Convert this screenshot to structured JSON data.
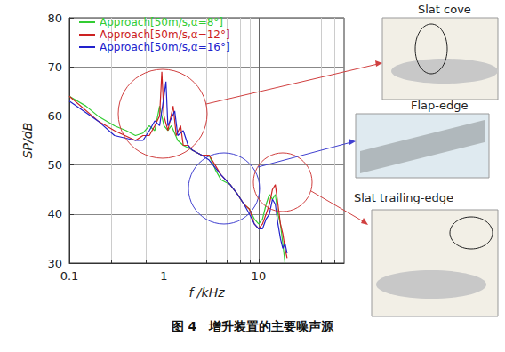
{
  "chart_data": {
    "type": "line",
    "title": "图 4　增升装置的主要噪声源",
    "x_label": "f /kHz",
    "y_label": "SP/dB",
    "log": "x",
    "grid": true,
    "legend": "top-left",
    "xlim": [
      0.1,
      80
    ],
    "xticks": [
      0.1,
      1,
      10
    ],
    "ylim": [
      30,
      80
    ],
    "yticks": [
      30,
      40,
      50,
      60,
      70,
      80
    ],
    "annotations": [
      "Slat cove",
      "Flap-edge",
      "Slat trailing-edge"
    ],
    "series": [
      {
        "name": "Approach[50m/s,α=8°]",
        "color": "#33cc33",
        "x": [
          0.1,
          0.15,
          0.2,
          0.3,
          0.4,
          0.5,
          0.6,
          0.7,
          0.8,
          0.9,
          1.0,
          1.1,
          1.2,
          1.4,
          1.6,
          1.8,
          2,
          2.5,
          3,
          3.5,
          4,
          5,
          6,
          7,
          8,
          9,
          10,
          11,
          12,
          13,
          14,
          15,
          16,
          17,
          18,
          19
        ],
        "values": [
          64,
          62,
          60,
          58,
          57,
          56,
          56.5,
          58,
          57,
          62,
          58,
          57,
          58,
          55,
          54,
          53.5,
          53,
          52,
          52,
          49,
          47,
          46,
          44,
          42,
          41,
          39,
          38,
          39,
          42,
          44,
          43,
          44,
          40,
          38,
          34,
          30
        ]
      },
      {
        "name": "Approach[50m/s,α=12°]",
        "color": "#cc2222",
        "x": [
          0.1,
          0.2,
          0.3,
          0.5,
          0.6,
          0.7,
          0.8,
          0.9,
          0.95,
          1.0,
          1.1,
          1.25,
          1.35,
          1.5,
          1.6,
          1.8,
          2,
          2.5,
          3,
          4,
          5,
          6,
          7,
          8,
          9,
          10,
          11,
          12,
          13,
          14,
          15,
          16,
          17,
          18,
          19,
          20
        ],
        "values": [
          64,
          59,
          57,
          55,
          56,
          56,
          58,
          60,
          69,
          60,
          57,
          62,
          56,
          58,
          54,
          54,
          53,
          52,
          52,
          48,
          46,
          44,
          42,
          41,
          38,
          37,
          38,
          40,
          42,
          45,
          46,
          42,
          38,
          36,
          33,
          31
        ]
      },
      {
        "name": "Approach[50m/s,α=16°]",
        "color": "#2222cc",
        "x": [
          0.1,
          0.2,
          0.3,
          0.5,
          0.6,
          0.7,
          0.8,
          0.9,
          1.0,
          1.05,
          1.1,
          1.3,
          1.4,
          1.6,
          1.8,
          2,
          2.5,
          3,
          4,
          5,
          6,
          7,
          8,
          9,
          10,
          11,
          12,
          13,
          14,
          15,
          16,
          17,
          18,
          19,
          20
        ],
        "values": [
          63,
          59,
          56,
          55,
          55,
          57,
          59,
          58,
          64,
          67,
          58,
          61,
          56,
          57,
          54,
          53,
          52,
          51,
          48,
          46,
          44,
          42,
          40,
          38,
          37,
          37,
          39,
          40,
          43,
          42,
          38,
          35,
          33,
          34,
          32
        ]
      }
    ]
  }
}
